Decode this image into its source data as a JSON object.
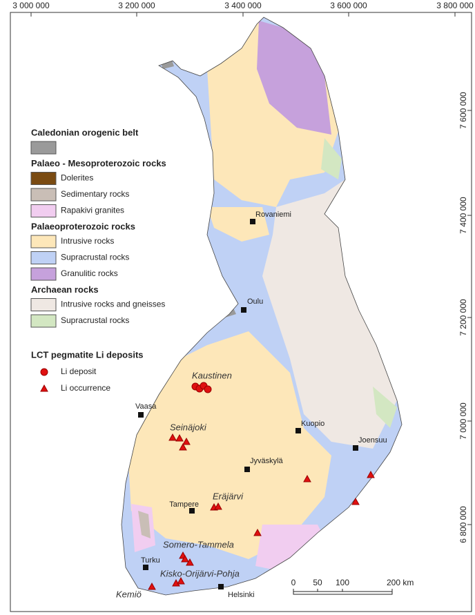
{
  "top_ticks": [
    "3 000 000",
    "3 200 000",
    "3 400 000",
    "3 600 000",
    "3 800 000"
  ],
  "right_ticks": [
    "7 600 000",
    "7 400 000",
    "7 200 000",
    "7 000 000",
    "6 800 000"
  ],
  "legend": [
    {
      "title": "Caledonian orogenic belt",
      "items": [
        {
          "label": "",
          "color": "#9a9a9a"
        }
      ]
    },
    {
      "title": "Palaeo - Mesoproterozoic rocks",
      "items": [
        {
          "label": "Dolerites",
          "color": "#7a4b12"
        },
        {
          "label": "Sedimentary rocks",
          "color": "#c9beb6"
        },
        {
          "label": "Rapakivi granites",
          "color": "#f1cdf0"
        }
      ]
    },
    {
      "title": "Palaeoproterozoic rocks",
      "items": [
        {
          "label": "Intrusive rocks",
          "color": "#fde7b9"
        },
        {
          "label": "Supracrustal rocks",
          "color": "#bfd1f5"
        },
        {
          "label": "Granulitic rocks",
          "color": "#c6a1dc"
        }
      ]
    },
    {
      "title": "Archaean rocks",
      "items": [
        {
          "label": "Intrusive rocks and gneisses",
          "color": "#efe8e3"
        },
        {
          "label": "Supracrustal rocks",
          "color": "#d3e7c2"
        }
      ]
    }
  ],
  "deposits_legend": {
    "title": "LCT pegmatite Li deposits",
    "items": [
      "Li deposit",
      "Li occurrence"
    ]
  },
  "cities": [
    "Rovaniemi",
    "Oulu",
    "Vaasa",
    "Kuopio",
    "Joensuu",
    "Jyväskylä",
    "Tampere",
    "Turku",
    "Helsinki"
  ],
  "areas": [
    "Kaustinen",
    "Seinäjoki",
    "Eräjärvi",
    "Somero-Tammela",
    "Kisko-Orijärvi-Pohja",
    "Kemiö"
  ],
  "scale": [
    "0",
    "50",
    "100",
    "200 km"
  ]
}
